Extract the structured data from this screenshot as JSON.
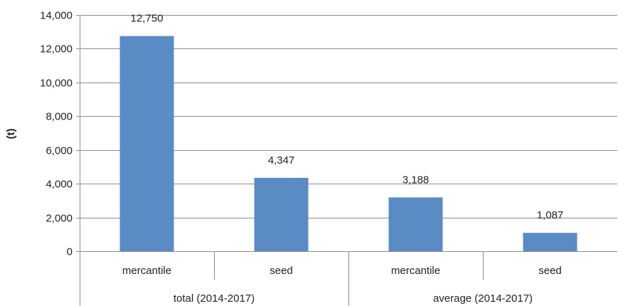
{
  "chart_data": {
    "type": "bar",
    "ylabel": "(t)",
    "ylim": [
      0,
      14000
    ],
    "yticks": [
      0,
      2000,
      4000,
      6000,
      8000,
      10000,
      12000,
      14000
    ],
    "ytick_labels": [
      "0",
      "2,000",
      "4,000",
      "6,000",
      "8,000",
      "10,000",
      "12,000",
      "14,000"
    ],
    "grid": true,
    "bar_color": "#5B8BC5",
    "groups": [
      {
        "label": "total (2014-2017)",
        "categories": [
          "mercantile",
          "seed"
        ]
      },
      {
        "label": "average (2014-2017)",
        "categories": [
          "mercantile",
          "seed"
        ]
      }
    ],
    "categories": [
      "mercantile",
      "seed",
      "mercantile",
      "seed"
    ],
    "values": [
      12750,
      4347,
      3188,
      1087
    ],
    "value_labels": [
      "12,750",
      "4,347",
      "3,188",
      "1,087"
    ]
  }
}
